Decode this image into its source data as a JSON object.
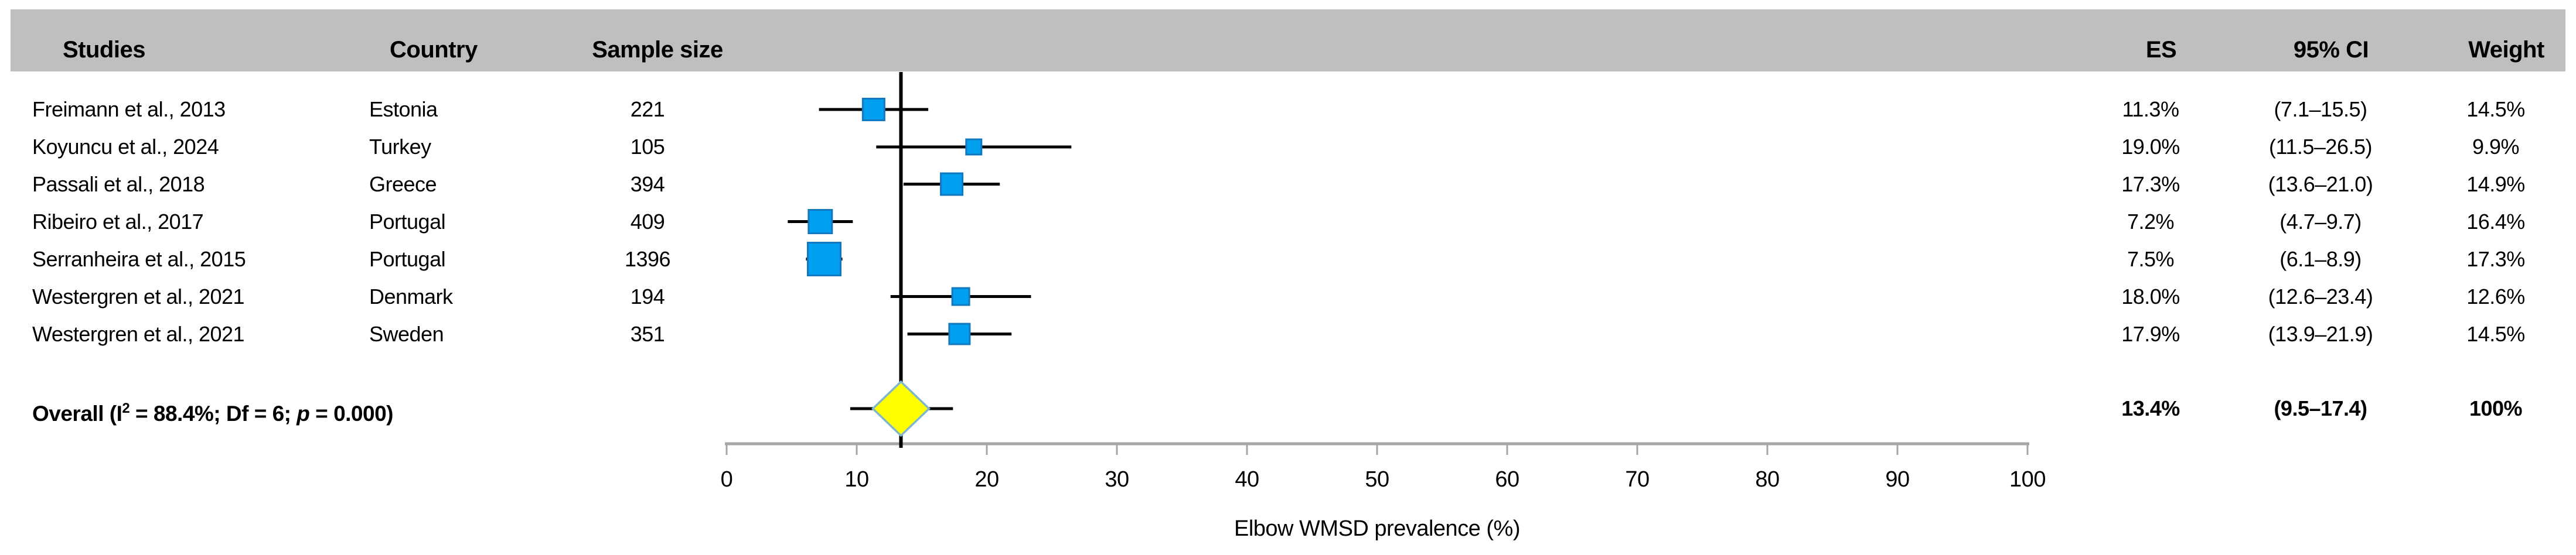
{
  "header": {
    "studies": "Studies",
    "country": "Country",
    "sample_size": "Sample size",
    "es": "ES",
    "ci": "95% CI",
    "weight": "Weight"
  },
  "rows": [
    {
      "study": "Freimann et al., 2013",
      "country": "Estonia",
      "n": "221",
      "es": "11.3%",
      "ci": "(7.1–15.5)",
      "weight": "14.5%"
    },
    {
      "study": "Koyuncu et al., 2024",
      "country": "Turkey",
      "n": "105",
      "es": "19.0%",
      "ci": "(11.5–26.5)",
      "weight": "9.9%"
    },
    {
      "study": "Passali et al., 2018",
      "country": "Greece",
      "n": "394",
      "es": "17.3%",
      "ci": "(13.6–21.0)",
      "weight": "14.9%"
    },
    {
      "study": "Ribeiro et al., 2017",
      "country": "Portugal",
      "n": "409",
      "es": "7.2%",
      "ci": "(4.7–9.7)",
      "weight": "16.4%"
    },
    {
      "study": "Serranheira et al., 2015",
      "country": "Portugal",
      "n": "1396",
      "es": "7.5%",
      "ci": "(6.1–8.9)",
      "weight": "17.3%"
    },
    {
      "study": "Westergren et al., 2021",
      "country": "Denmark",
      "n": "194",
      "es": "18.0%",
      "ci": "(12.6–23.4)",
      "weight": "12.6%"
    },
    {
      "study": "Westergren et al., 2021",
      "country": "Sweden",
      "n": "351",
      "es": "17.9%",
      "ci": "(13.9–21.9)",
      "weight": "14.5%"
    }
  ],
  "overall": {
    "label_pre": "Overall (I",
    "label_sup": "2",
    "label_mid": " = 88.4%;  Df = 6;  ",
    "label_p": "p",
    "label_post": " = 0.000)",
    "es": "13.4%",
    "ci": "(9.5–17.4)",
    "weight": "100%"
  },
  "axis": {
    "tick_labels": [
      "0",
      "10",
      "20",
      "30",
      "40",
      "50",
      "60",
      "70",
      "80",
      "90",
      "100"
    ],
    "title": "Elbow WMSD prevalence (%)"
  },
  "chart_data": {
    "type": "forest",
    "xlabel": "Elbow WMSD prevalence (%)",
    "xlim": [
      0,
      100
    ],
    "x_ticks": [
      0,
      10,
      20,
      30,
      40,
      50,
      60,
      70,
      80,
      90,
      100
    ],
    "studies": [
      {
        "label": "Freimann et al., 2013",
        "country": "Estonia",
        "n": 221,
        "es": 11.3,
        "ci": [
          7.1,
          15.5
        ],
        "weight": 14.5,
        "marker_px": 37
      },
      {
        "label": "Koyuncu et al., 2024",
        "country": "Turkey",
        "n": 105,
        "es": 19.0,
        "ci": [
          11.5,
          26.5
        ],
        "weight": 9.9,
        "marker_px": 26
      },
      {
        "label": "Passali et al., 2018",
        "country": "Greece",
        "n": 394,
        "es": 17.3,
        "ci": [
          13.6,
          21.0
        ],
        "weight": 14.9,
        "marker_px": 37
      },
      {
        "label": "Ribeiro et al., 2017",
        "country": "Portugal",
        "n": 409,
        "es": 7.2,
        "ci": [
          4.7,
          9.7
        ],
        "weight": 16.4,
        "marker_px": 40
      },
      {
        "label": "Serranheira et al., 2015",
        "country": "Portugal",
        "n": 1396,
        "es": 7.5,
        "ci": [
          6.1,
          8.9
        ],
        "weight": 17.3,
        "marker_px": 56
      },
      {
        "label": "Westergren et al., 2021",
        "country": "Denmark",
        "n": 194,
        "es": 18.0,
        "ci": [
          12.6,
          23.4
        ],
        "weight": 12.6,
        "marker_px": 29
      },
      {
        "label": "Westergren et al., 2021",
        "country": "Sweden",
        "n": 351,
        "es": 17.9,
        "ci": [
          13.9,
          21.9
        ],
        "weight": 14.5,
        "marker_px": 35
      }
    ],
    "overall": {
      "es": 13.4,
      "ci": [
        9.5,
        17.4
      ],
      "weight": 100,
      "i_squared": "88.4%",
      "df": 6,
      "p": "0.000"
    },
    "marker_color": "#009FF0",
    "marker_border": "#1478BE",
    "diamond_fill": "#FFFF00",
    "diamond_border": "#7FB6CB",
    "axis_color": "#A6A6A6",
    "line_color": "#000000",
    "header_bg": "#BFBFBF"
  }
}
